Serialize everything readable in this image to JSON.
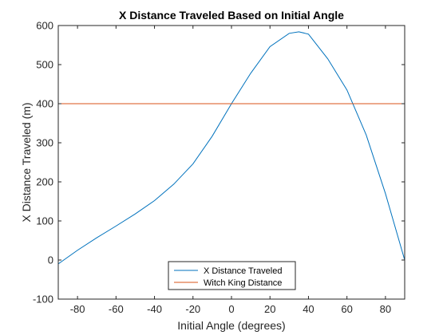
{
  "chart_data": {
    "type": "line",
    "title": "X Distance Traveled Based on Initial Angle",
    "xlabel": "Initial Angle (degrees)",
    "ylabel": "X Distance Traveled (m)",
    "xlim": [
      -90,
      90
    ],
    "ylim": [
      -100,
      600
    ],
    "xticks": [
      -80,
      -60,
      -40,
      -20,
      0,
      20,
      40,
      60,
      80
    ],
    "yticks": [
      -100,
      0,
      100,
      200,
      300,
      400,
      500,
      600
    ],
    "grid": false,
    "legend_location": "bottom-center",
    "series": [
      {
        "name": "X Distance Traveled",
        "color": "#0072BD",
        "x": [
          -90,
          -80,
          -70,
          -60,
          -50,
          -40,
          -30,
          -20,
          -10,
          0,
          10,
          20,
          30,
          35,
          40,
          50,
          60,
          70,
          80,
          90
        ],
        "y": [
          -10,
          25,
          57,
          87,
          118,
          152,
          194,
          246,
          317,
          400,
          478,
          546,
          580,
          584,
          578,
          515,
          435,
          320,
          170,
          0
        ]
      },
      {
        "name": "Witch King Distance",
        "color": "#D95319",
        "x": [
          -90,
          90
        ],
        "y": [
          400,
          400
        ]
      }
    ]
  }
}
